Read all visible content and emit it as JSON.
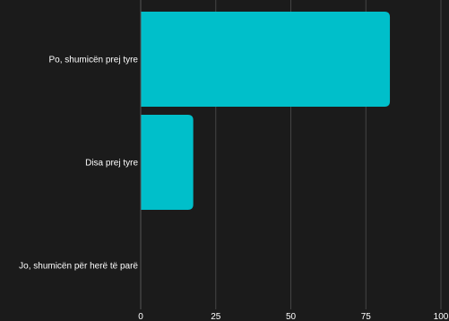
{
  "chart_data": {
    "type": "bar",
    "orientation": "horizontal",
    "categories": [
      "Po, shumicën prej tyre",
      "Disa prej tyre",
      "Jo, shumicën për herë të parë"
    ],
    "values": [
      83,
      17.5,
      0
    ],
    "xlim": [
      0,
      100
    ],
    "xticks": [
      "0",
      "25",
      "50",
      "75",
      "100"
    ],
    "grid": true,
    "legend": "none",
    "colors": {
      "bar": "#00bfca",
      "background": "#1b1b1b",
      "grid": "#444444",
      "text": "#ffffff"
    }
  }
}
